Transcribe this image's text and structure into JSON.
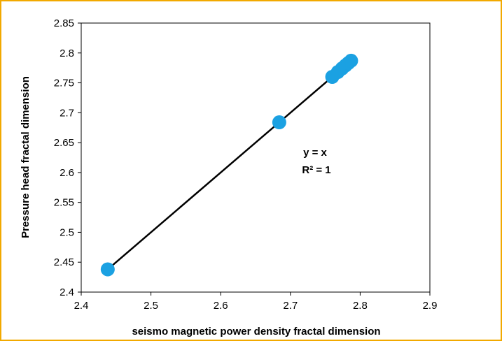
{
  "chart_data": {
    "type": "scatter",
    "xlabel": "seismo magnetic power density fractal  dimension",
    "ylabel": "Pressure head fractal dimension",
    "xlim": [
      2.4,
      2.9
    ],
    "ylim": [
      2.4,
      2.85
    ],
    "x_ticks": [
      "2.4",
      "2.5",
      "2.6",
      "2.7",
      "2.8",
      "2.9"
    ],
    "y_ticks": [
      "2.4",
      "2.45",
      "2.5",
      "2.55",
      "2.6",
      "2.65",
      "2.7",
      "2.75",
      "2.8",
      "2.85"
    ],
    "grid": false,
    "marker_color": "#1ba1e2",
    "line_color": "#000000",
    "frame_color": "#f2a900",
    "series": [
      {
        "x": [
          2.438,
          2.684,
          2.76,
          2.768,
          2.774,
          2.779,
          2.783,
          2.787
        ],
        "y": [
          2.438,
          2.684,
          2.76,
          2.768,
          2.774,
          2.779,
          2.783,
          2.787
        ]
      }
    ],
    "trendline": {
      "x": [
        2.438,
        2.787
      ],
      "y": [
        2.438,
        2.787
      ]
    },
    "annotations": [
      "y = x",
      "R² = 1"
    ]
  }
}
